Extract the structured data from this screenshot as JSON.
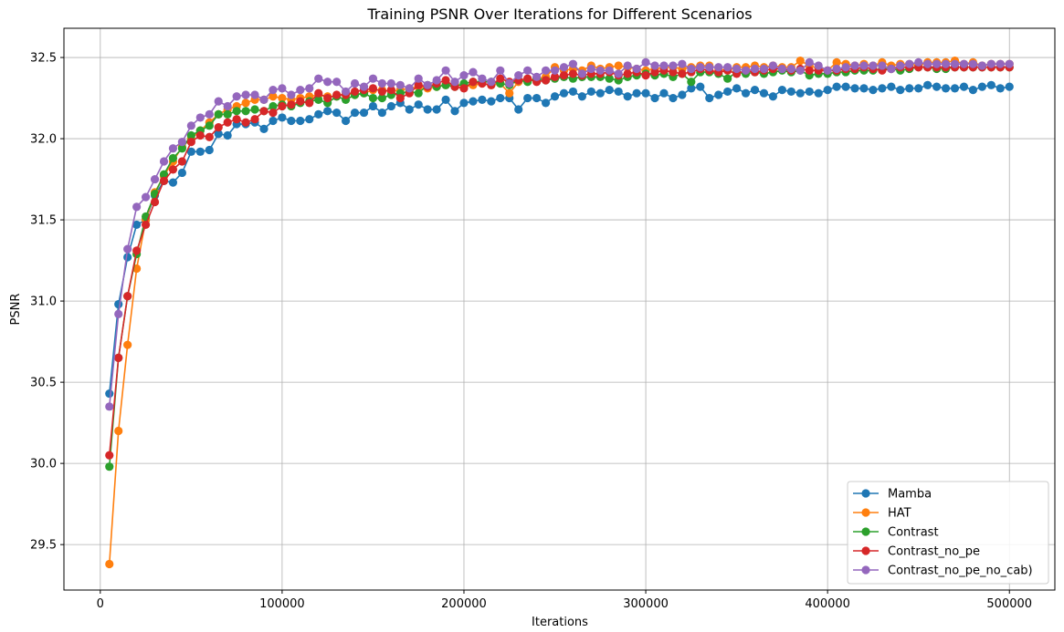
{
  "chart_data": {
    "type": "line",
    "title": "Training PSNR Over Iterations for Different Scenarios",
    "xlabel": "Iterations",
    "ylabel": "PSNR",
    "xlim": [
      -20000,
      525000
    ],
    "ylim": [
      29.22,
      32.68
    ],
    "x_ticks": [
      0,
      100000,
      200000,
      300000,
      400000,
      500000
    ],
    "x_tick_labels": [
      "0",
      "100000",
      "200000",
      "300000",
      "400000",
      "500000"
    ],
    "y_ticks": [
      29.5,
      30.0,
      30.5,
      31.0,
      31.5,
      32.0,
      32.5
    ],
    "y_tick_labels": [
      "29.5",
      "30.0",
      "30.5",
      "31.0",
      "31.5",
      "32.0",
      "32.5"
    ],
    "grid": true,
    "legend_position": "lower-right",
    "x": [
      5000,
      10000,
      15000,
      20000,
      25000,
      30000,
      35000,
      40000,
      45000,
      50000,
      55000,
      60000,
      65000,
      70000,
      75000,
      80000,
      85000,
      90000,
      95000,
      100000,
      105000,
      110000,
      115000,
      120000,
      125000,
      130000,
      135000,
      140000,
      145000,
      150000,
      155000,
      160000,
      165000,
      170000,
      175000,
      180000,
      185000,
      190000,
      195000,
      200000,
      205000,
      210000,
      215000,
      220000,
      225000,
      230000,
      235000,
      240000,
      245000,
      250000,
      255000,
      260000,
      265000,
      270000,
      275000,
      280000,
      285000,
      290000,
      295000,
      300000,
      305000,
      310000,
      315000,
      320000,
      325000,
      330000,
      335000,
      340000,
      345000,
      350000,
      355000,
      360000,
      365000,
      370000,
      375000,
      380000,
      385000,
      390000,
      395000,
      400000,
      405000,
      410000,
      415000,
      420000,
      425000,
      430000,
      435000,
      440000,
      445000,
      450000,
      455000,
      460000,
      465000,
      470000,
      475000,
      480000,
      485000,
      490000,
      495000,
      500000
    ],
    "series": [
      {
        "name": "Mamba",
        "color": "#1f77b4",
        "values": [
          30.43,
          30.98,
          31.27,
          31.47,
          31.5,
          31.65,
          31.74,
          31.73,
          31.79,
          31.92,
          31.92,
          31.93,
          32.03,
          32.02,
          32.09,
          32.09,
          32.1,
          32.06,
          32.11,
          32.13,
          32.11,
          32.11,
          32.12,
          32.15,
          32.17,
          32.16,
          32.11,
          32.16,
          32.16,
          32.2,
          32.16,
          32.2,
          32.22,
          32.18,
          32.21,
          32.18,
          32.18,
          32.24,
          32.17,
          32.22,
          32.23,
          32.24,
          32.23,
          32.25,
          32.25,
          32.18,
          32.25,
          32.25,
          32.22,
          32.26,
          32.28,
          32.29,
          32.26,
          32.29,
          32.28,
          32.3,
          32.29,
          32.26,
          32.28,
          32.28,
          32.25,
          32.28,
          32.25,
          32.27,
          32.31,
          32.32,
          32.25,
          32.27,
          32.29,
          32.31,
          32.28,
          32.3,
          32.28,
          32.26,
          32.3,
          32.29,
          32.28,
          32.29,
          32.28,
          32.3,
          32.32,
          32.32,
          32.31,
          32.31,
          32.3,
          32.31,
          32.32,
          32.3,
          32.31,
          32.31,
          32.33,
          32.32,
          32.31,
          32.31,
          32.32,
          32.3,
          32.32,
          32.33,
          32.31,
          32.32
        ]
      },
      {
        "name": "HAT",
        "color": "#ff7f0e",
        "values": [
          29.38,
          30.2,
          30.73,
          31.2,
          31.5,
          31.67,
          31.77,
          31.86,
          31.95,
          32.0,
          32.05,
          32.1,
          32.15,
          32.18,
          32.2,
          32.22,
          32.24,
          32.24,
          32.26,
          32.25,
          32.24,
          32.25,
          32.26,
          32.27,
          32.26,
          32.26,
          32.28,
          32.27,
          32.28,
          32.3,
          32.3,
          32.29,
          32.3,
          32.31,
          32.32,
          32.31,
          32.32,
          32.33,
          32.34,
          32.32,
          32.33,
          32.34,
          32.33,
          32.34,
          32.28,
          32.35,
          32.36,
          32.37,
          32.38,
          32.44,
          32.42,
          32.43,
          32.42,
          32.45,
          32.43,
          32.44,
          32.45,
          32.44,
          32.43,
          32.42,
          32.43,
          32.44,
          32.44,
          32.43,
          32.44,
          32.45,
          32.45,
          32.43,
          32.42,
          32.44,
          32.44,
          32.45,
          32.44,
          32.45,
          32.44,
          32.44,
          32.48,
          32.45,
          32.43,
          32.42,
          32.47,
          32.46,
          32.45,
          32.46,
          32.45,
          32.47,
          32.45,
          32.46,
          32.46,
          32.45,
          32.47,
          32.47,
          32.47,
          32.48,
          32.46,
          32.47,
          32.45,
          32.46,
          32.46,
          32.46
        ]
      },
      {
        "name": "Contrast",
        "color": "#2ca02c",
        "values": [
          29.98,
          30.65,
          31.03,
          31.29,
          31.52,
          31.66,
          31.78,
          31.88,
          31.94,
          32.02,
          32.05,
          32.08,
          32.15,
          32.15,
          32.17,
          32.17,
          32.18,
          32.17,
          32.2,
          32.21,
          32.2,
          32.22,
          32.23,
          32.24,
          32.22,
          32.26,
          32.24,
          32.27,
          32.28,
          32.25,
          32.25,
          32.27,
          32.28,
          32.29,
          32.28,
          32.33,
          32.32,
          32.33,
          32.32,
          32.34,
          32.35,
          32.35,
          32.35,
          32.34,
          32.33,
          32.36,
          32.35,
          32.37,
          32.36,
          32.37,
          32.38,
          32.37,
          32.38,
          32.38,
          32.38,
          32.37,
          32.36,
          32.38,
          32.39,
          32.4,
          32.39,
          32.4,
          32.38,
          32.4,
          32.35,
          32.41,
          32.41,
          32.4,
          32.37,
          32.41,
          32.4,
          32.41,
          32.4,
          32.41,
          32.42,
          32.41,
          32.42,
          32.39,
          32.4,
          32.4,
          32.41,
          32.41,
          32.42,
          32.42,
          32.42,
          32.43,
          32.43,
          32.42,
          32.43,
          32.44,
          32.44,
          32.43,
          32.43,
          32.44,
          32.44,
          32.44,
          32.44,
          32.44,
          32.44,
          32.44
        ]
      },
      {
        "name": "Contrast_no_pe",
        "color": "#d62728",
        "values": [
          30.05,
          30.65,
          31.03,
          31.31,
          31.47,
          31.61,
          31.74,
          31.81,
          31.86,
          31.98,
          32.02,
          32.01,
          32.07,
          32.1,
          32.12,
          32.1,
          32.12,
          32.17,
          32.16,
          32.2,
          32.21,
          32.23,
          32.22,
          32.28,
          32.25,
          32.27,
          32.27,
          32.29,
          32.3,
          32.31,
          32.29,
          32.3,
          32.25,
          32.28,
          32.33,
          32.32,
          32.34,
          32.36,
          32.32,
          32.31,
          32.35,
          32.34,
          32.33,
          32.37,
          32.35,
          32.36,
          32.37,
          32.35,
          32.36,
          32.38,
          32.39,
          32.4,
          32.39,
          32.4,
          32.4,
          32.41,
          32.39,
          32.4,
          32.41,
          32.39,
          32.41,
          32.42,
          32.41,
          32.4,
          32.41,
          32.43,
          32.42,
          32.41,
          32.42,
          32.4,
          32.42,
          32.41,
          32.42,
          32.43,
          32.43,
          32.42,
          32.43,
          32.42,
          32.42,
          32.42,
          32.42,
          32.43,
          32.43,
          32.44,
          32.43,
          32.42,
          32.43,
          32.44,
          32.44,
          32.44,
          32.44,
          32.44,
          32.44,
          32.44,
          32.44,
          32.44,
          32.44,
          32.44,
          32.44,
          32.44
        ]
      },
      {
        "name": "Contrast_no_pe_no_cab)",
        "color": "#9467bd",
        "values": [
          30.35,
          30.92,
          31.32,
          31.58,
          31.64,
          31.75,
          31.86,
          31.94,
          31.98,
          32.08,
          32.13,
          32.15,
          32.23,
          32.2,
          32.26,
          32.27,
          32.27,
          32.24,
          32.3,
          32.31,
          32.27,
          32.3,
          32.31,
          32.37,
          32.35,
          32.35,
          32.29,
          32.34,
          32.32,
          32.37,
          32.34,
          32.34,
          32.33,
          32.31,
          32.37,
          32.33,
          32.36,
          32.42,
          32.35,
          32.39,
          32.41,
          32.37,
          32.35,
          32.42,
          32.34,
          32.39,
          32.42,
          32.38,
          32.42,
          32.42,
          32.44,
          32.46,
          32.4,
          32.43,
          32.42,
          32.42,
          32.4,
          32.45,
          32.43,
          32.47,
          32.45,
          32.45,
          32.45,
          32.46,
          32.43,
          32.44,
          32.44,
          32.44,
          32.44,
          32.43,
          32.42,
          32.43,
          32.43,
          32.45,
          32.43,
          32.43,
          32.42,
          32.47,
          32.45,
          32.42,
          32.43,
          32.44,
          32.45,
          32.45,
          32.45,
          32.45,
          32.43,
          32.45,
          32.46,
          32.47,
          32.46,
          32.46,
          32.46,
          32.46,
          32.46,
          32.46,
          32.45,
          32.46,
          32.46,
          32.46
        ]
      }
    ]
  }
}
